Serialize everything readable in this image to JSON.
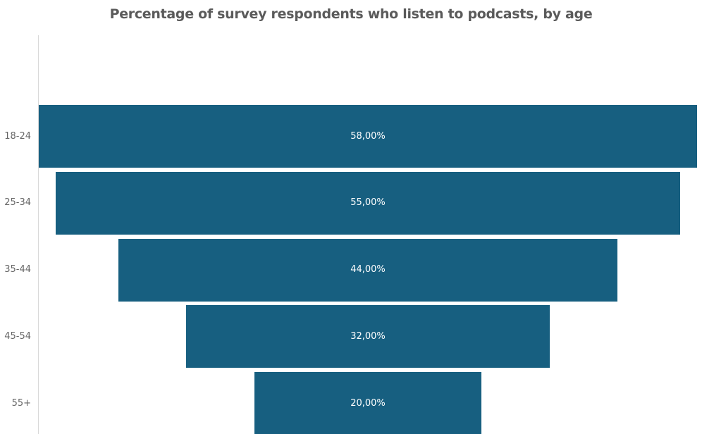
{
  "chart_data": {
    "type": "funnel",
    "title": "Percentage of survey respondents who listen to podcasts, by age",
    "categories": [
      "18-24",
      "25-34",
      "35-44",
      "45-54",
      "55+"
    ],
    "values": [
      58,
      55,
      44,
      32,
      20
    ],
    "data_labels": [
      "58,00%",
      "55,00%",
      "44,00%",
      "32,00%",
      "20,00%"
    ],
    "xlabel": "",
    "ylabel": "",
    "grid": false,
    "legend": "none",
    "bar_color": "#175f80"
  }
}
